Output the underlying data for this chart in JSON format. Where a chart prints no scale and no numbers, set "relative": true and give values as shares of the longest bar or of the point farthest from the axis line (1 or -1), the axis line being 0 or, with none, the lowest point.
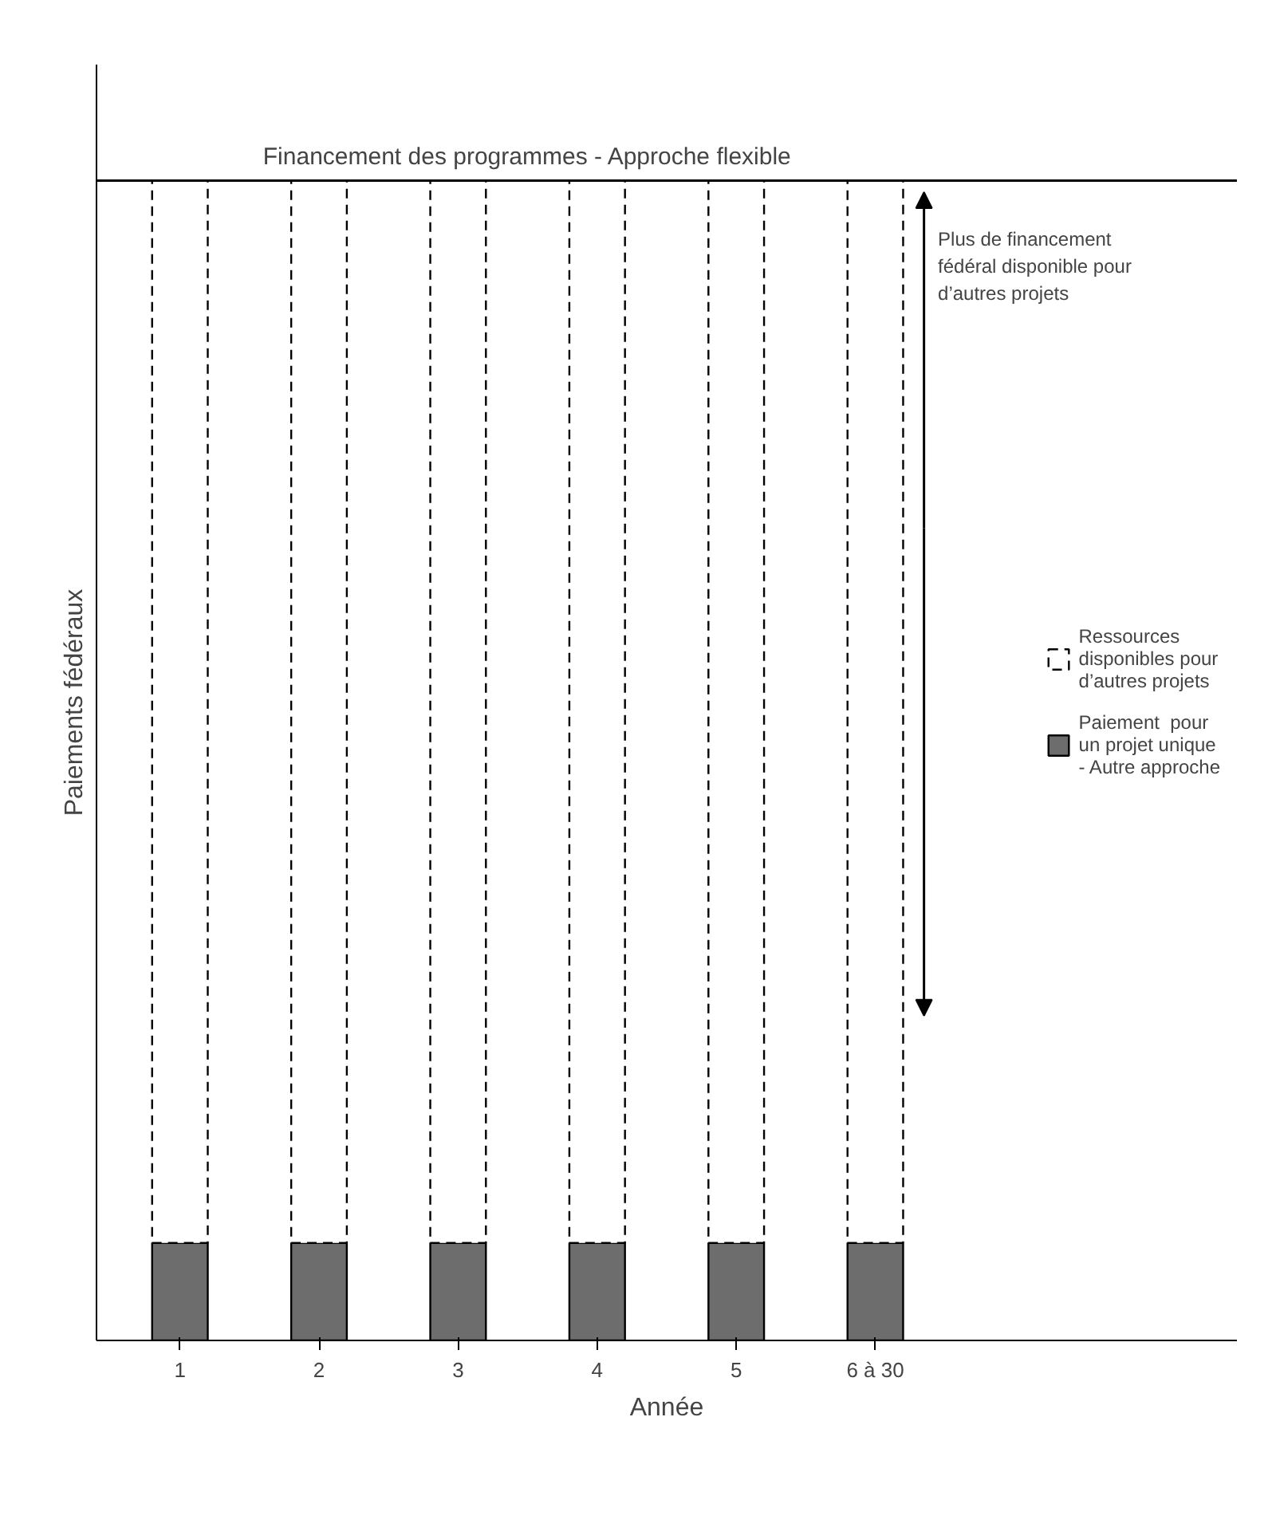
{
  "chart_data": {
    "type": "bar",
    "stacked": true,
    "relative": true,
    "xlabel": "Année",
    "ylabel": "Paiements fédéraux",
    "categories": [
      "1",
      "2",
      "3",
      "4",
      "5",
      "6 à 30"
    ],
    "series": [
      {
        "name": "Paiement  pour un projet unique - Autre approche",
        "color": "#6d6d6d",
        "values": [
          0.084,
          0.084,
          0.084,
          0.084,
          0.084,
          0.084
        ]
      },
      {
        "name": "Ressources disponibles pour d’autres projets",
        "color": "#ffffff",
        "line_style": "dashed",
        "values": [
          0.916,
          0.916,
          0.916,
          0.916,
          0.916,
          0.916
        ]
      }
    ],
    "ref_lines": [
      {
        "axis": "y",
        "value": 1,
        "label": "Financement des programmes - Approche flexible",
        "color": "#000000"
      }
    ],
    "annotations": [
      "Plus de financement fédéral disponible pour d’autres projets"
    ],
    "legend": "right",
    "grid": false,
    "tick_labels": "x"
  }
}
